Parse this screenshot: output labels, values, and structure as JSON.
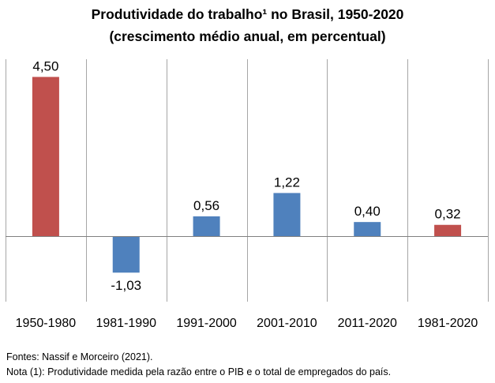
{
  "chart_data": {
    "type": "bar",
    "title_line1": "Produtividade do trabalho¹ no Brasil, 1950-2020",
    "title_line2": "(crescimento médio anual, em percentual)",
    "categories": [
      "1950-1980",
      "1981-1990",
      "1991-2000",
      "2001-2010",
      "2011-2020",
      "1981-2020"
    ],
    "values": [
      4.5,
      -1.03,
      0.56,
      1.22,
      0.4,
      0.32
    ],
    "value_labels": [
      "4,50",
      "-1,03",
      "0,56",
      "1,22",
      "0,40",
      "0,32"
    ],
    "bar_colors": [
      "#c0504d",
      "#4f81bd",
      "#4f81bd",
      "#4f81bd",
      "#4f81bd",
      "#c0504d"
    ],
    "ylim": [
      -1.85,
      5.0
    ],
    "grid": "vertical separators between categories",
    "legend": "none"
  },
  "notes": {
    "source": "Fontes: Nassif e Morceiro (2021).",
    "note": "Nota (1): Produtividade medida pela razão entre o PIB e o total de empregados do país."
  }
}
